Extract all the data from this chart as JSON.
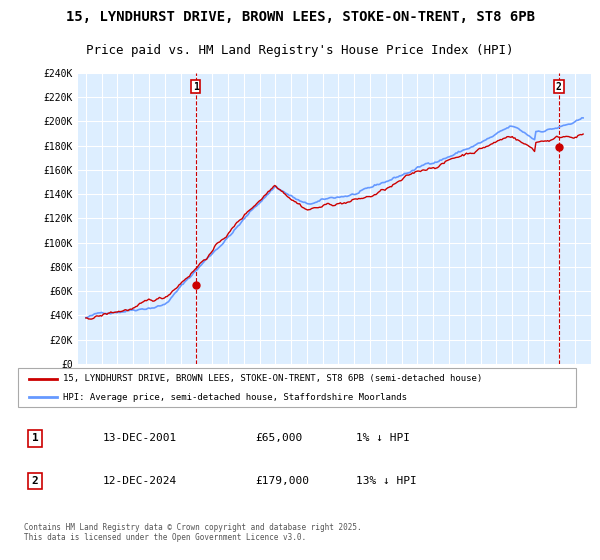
{
  "title": "15, LYNDHURST DRIVE, BROWN LEES, STOKE-ON-TRENT, ST8 6PB",
  "subtitle": "Price paid vs. HM Land Registry's House Price Index (HPI)",
  "ylabel_ticks": [
    "£0",
    "£20K",
    "£40K",
    "£60K",
    "£80K",
    "£100K",
    "£120K",
    "£140K",
    "£160K",
    "£180K",
    "£200K",
    "£220K",
    "£240K"
  ],
  "ytick_vals": [
    0,
    20000,
    40000,
    60000,
    80000,
    100000,
    120000,
    140000,
    160000,
    180000,
    200000,
    220000,
    240000
  ],
  "ylim": [
    0,
    240000
  ],
  "xlim_start": 1994.5,
  "xlim_end": 2027.0,
  "hpi_color": "#6699ff",
  "price_color": "#cc0000",
  "bg_color": "#ddeeff",
  "sale1_year": 2001.95,
  "sale1_price": 65000,
  "sale2_year": 2024.95,
  "sale2_price": 179000,
  "legend_label1": "15, LYNDHURST DRIVE, BROWN LEES, STOKE-ON-TRENT, ST8 6PB (semi-detached house)",
  "legend_label2": "HPI: Average price, semi-detached house, Staffordshire Moorlands",
  "annotation1_label": "1",
  "annotation2_label": "2",
  "table_row1": [
    "1",
    "13-DEC-2001",
    "£65,000",
    "1% ↓ HPI"
  ],
  "table_row2": [
    "2",
    "12-DEC-2024",
    "£179,000",
    "13% ↓ HPI"
  ],
  "footnote": "Contains HM Land Registry data © Crown copyright and database right 2025.\nThis data is licensed under the Open Government Licence v3.0.",
  "title_fontsize": 10,
  "subtitle_fontsize": 9
}
